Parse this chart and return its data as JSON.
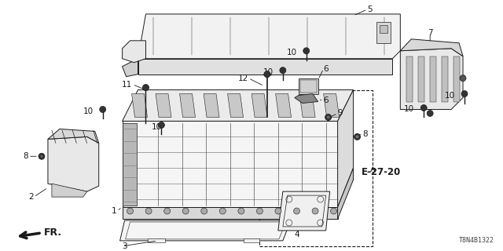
{
  "background_color": "#ffffff",
  "diagram_code": "T8N4B1322",
  "ref_label": "E-27-20",
  "fr_label": "FR.",
  "line_color": "#1a1a1a",
  "gray_fill": "#e8e8e8",
  "dark_fill": "#b0b0b0",
  "mid_fill": "#d0d0d0",
  "part_label_fontsize": 7.5,
  "ref_label_fontsize": 8.5,
  "code_fontsize": 6
}
